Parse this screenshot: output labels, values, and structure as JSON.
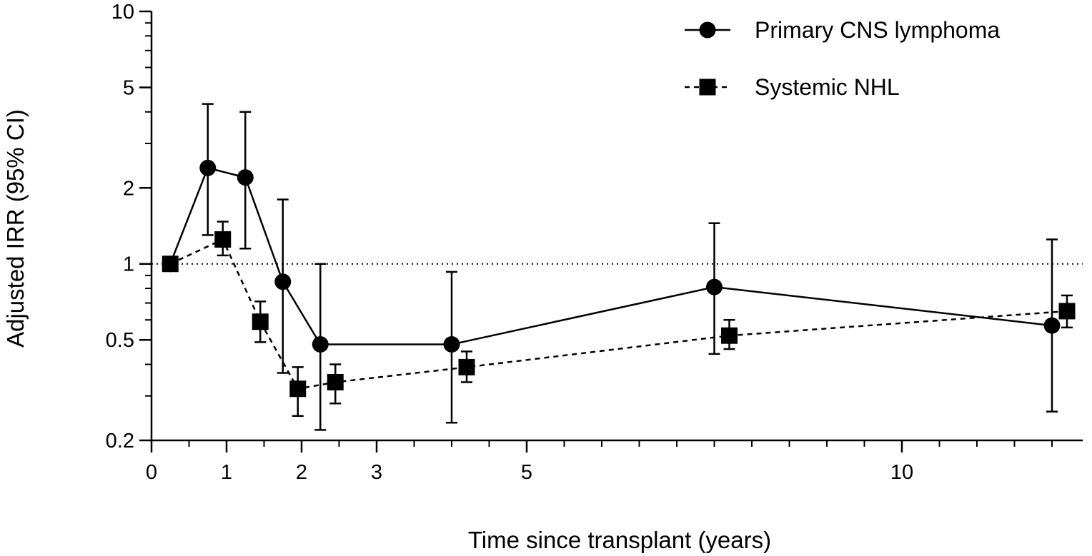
{
  "chart_data": {
    "type": "line",
    "xlabel": "Time since transplant (years)",
    "ylabel": "Adjusted IRR (95% CI)",
    "x_ticks": [
      0,
      1,
      2,
      3,
      5,
      10
    ],
    "x_tick_labels": [
      "0",
      "1",
      "2",
      "3",
      "5",
      "10"
    ],
    "y_scale": "log",
    "y_ticks": [
      0.2,
      0.5,
      1,
      2,
      5,
      10
    ],
    "y_tick_labels": [
      "0.2",
      "0.5",
      "1",
      "2",
      "5",
      "10"
    ],
    "xlim": [
      0,
      12.5
    ],
    "ylim": [
      0.2,
      10
    ],
    "reference_line": {
      "y": 1,
      "style": "dotted"
    },
    "legend_position": "top-right",
    "series": [
      {
        "name": "Primary CNS lymphoma",
        "marker": "circle",
        "line_style": "solid",
        "points": [
          {
            "x": 0.25,
            "y": 1.0,
            "lo": 1.0,
            "hi": 1.0
          },
          {
            "x": 0.75,
            "y": 2.4,
            "lo": 1.3,
            "hi": 4.3
          },
          {
            "x": 1.25,
            "y": 2.2,
            "lo": 1.15,
            "hi": 4.0
          },
          {
            "x": 1.75,
            "y": 0.85,
            "lo": 0.37,
            "hi": 1.8
          },
          {
            "x": 2.25,
            "y": 0.48,
            "lo": 0.22,
            "hi": 1.0
          },
          {
            "x": 4.0,
            "y": 0.48,
            "lo": 0.235,
            "hi": 0.93
          },
          {
            "x": 7.5,
            "y": 0.81,
            "lo": 0.44,
            "hi": 1.45
          },
          {
            "x": 12.0,
            "y": 0.57,
            "lo": 0.26,
            "hi": 1.25
          }
        ]
      },
      {
        "name": "Systemic NHL",
        "marker": "square",
        "line_style": "dashed",
        "points": [
          {
            "x": 0.25,
            "y": 1.0,
            "lo": 1.0,
            "hi": 1.0
          },
          {
            "x": 0.95,
            "y": 1.25,
            "lo": 1.08,
            "hi": 1.47
          },
          {
            "x": 1.45,
            "y": 0.59,
            "lo": 0.49,
            "hi": 0.71
          },
          {
            "x": 1.95,
            "y": 0.32,
            "lo": 0.25,
            "hi": 0.39
          },
          {
            "x": 2.45,
            "y": 0.34,
            "lo": 0.28,
            "hi": 0.4
          },
          {
            "x": 4.2,
            "y": 0.39,
            "lo": 0.34,
            "hi": 0.45
          },
          {
            "x": 7.7,
            "y": 0.52,
            "lo": 0.46,
            "hi": 0.6
          },
          {
            "x": 12.2,
            "y": 0.65,
            "lo": 0.56,
            "hi": 0.75
          }
        ]
      }
    ]
  }
}
